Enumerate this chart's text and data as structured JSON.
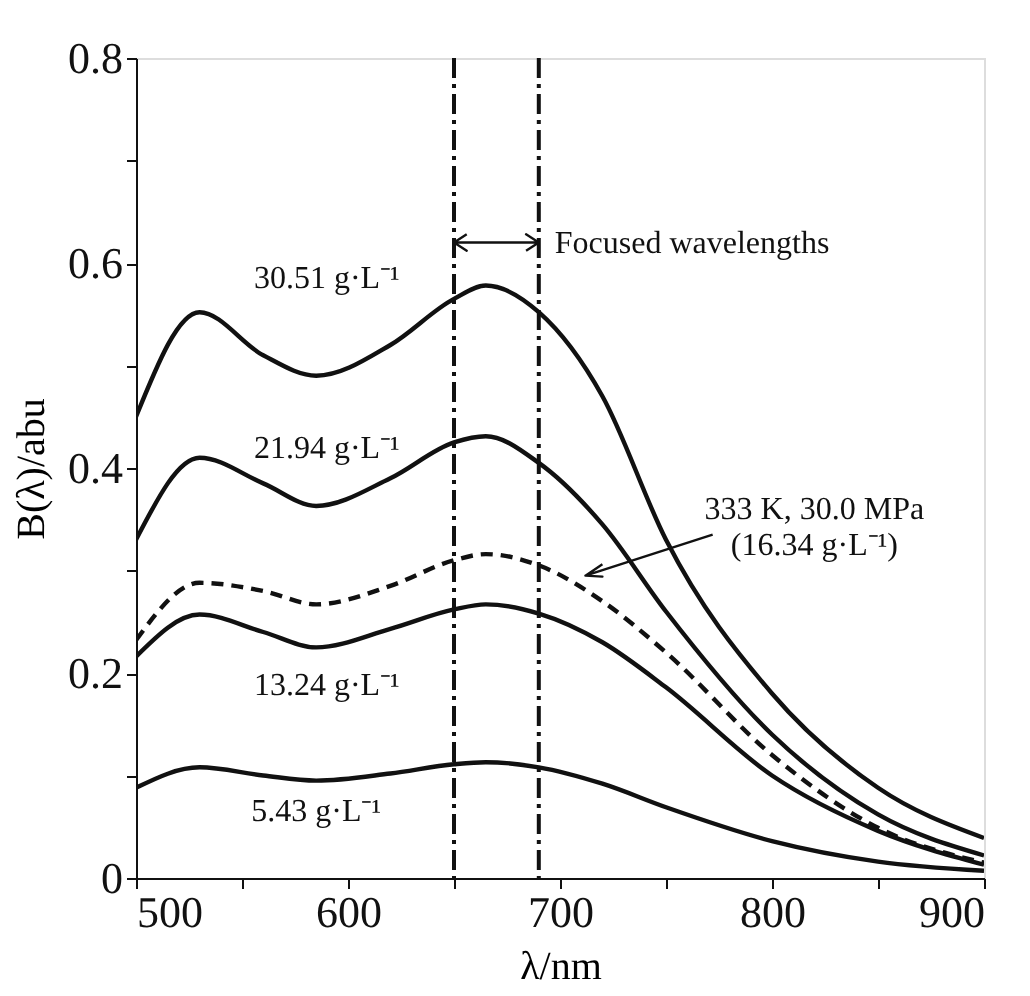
{
  "chart_data": {
    "type": "line",
    "xlabel": "λ/nm",
    "ylabel": "B(λ)/abu",
    "x": [
      500,
      530,
      560,
      585,
      620,
      650,
      665,
      690,
      720,
      750,
      800,
      850,
      900
    ],
    "series": [
      {
        "name": "30.51 g·L⁻¹",
        "color": "#111111",
        "line_style": "solid",
        "values": [
          0.45,
          0.552,
          0.51,
          0.49,
          0.52,
          0.565,
          0.578,
          0.552,
          0.47,
          0.33,
          0.18,
          0.088,
          0.039
        ]
      },
      {
        "name": "21.94 g·L⁻¹",
        "color": "#111111",
        "line_style": "solid",
        "values": [
          0.33,
          0.41,
          0.385,
          0.363,
          0.39,
          0.425,
          0.431,
          0.405,
          0.345,
          0.26,
          0.14,
          0.062,
          0.022
        ]
      },
      {
        "name": "333 K, 30.0 MPa\n(16.34 g·L⁻¹)",
        "color": "#111111",
        "line_style": "dashed",
        "values": [
          0.232,
          0.288,
          0.28,
          0.267,
          0.285,
          0.31,
          0.316,
          0.305,
          0.27,
          0.22,
          0.12,
          0.049,
          0.015
        ]
      },
      {
        "name": "13.24 g·L⁻¹",
        "color": "#111111",
        "line_style": "solid",
        "values": [
          0.216,
          0.257,
          0.24,
          0.225,
          0.243,
          0.262,
          0.267,
          0.258,
          0.23,
          0.186,
          0.1,
          0.046,
          0.013
        ]
      },
      {
        "name": "5.43 g·L⁻¹",
        "color": "#111111",
        "line_style": "solid",
        "values": [
          0.088,
          0.108,
          0.1,
          0.095,
          0.102,
          0.111,
          0.113,
          0.108,
          0.092,
          0.069,
          0.036,
          0.016,
          0.007
        ]
      }
    ],
    "xlim": [
      500,
      900
    ],
    "ylim": [
      0,
      0.8
    ],
    "xticks": [
      500,
      {
        "value": 550,
        "label": null
      },
      600,
      {
        "value": 650,
        "label": null
      },
      700,
      {
        "value": 750,
        "label": null
      },
      800,
      {
        "value": 850,
        "label": null
      },
      900
    ],
    "yticks": [
      0,
      {
        "value": 0.1,
        "label": null
      },
      0.2,
      {
        "value": 0.3,
        "label": null
      },
      0.4,
      {
        "value": 0.5,
        "label": null
      },
      0.6,
      {
        "value": 0.7,
        "label": null
      },
      0.8
    ],
    "ref_lines": [
      {
        "axis": "x",
        "value": 650,
        "line_style": "dashdot",
        "color": "#111111"
      },
      {
        "axis": "x",
        "value": 690,
        "line_style": "dashdot",
        "color": "#111111"
      }
    ],
    "annotations": [
      {
        "text": "Focused wavelengths",
        "x": 690,
        "y": 0.62
      }
    ],
    "grid": false
  }
}
